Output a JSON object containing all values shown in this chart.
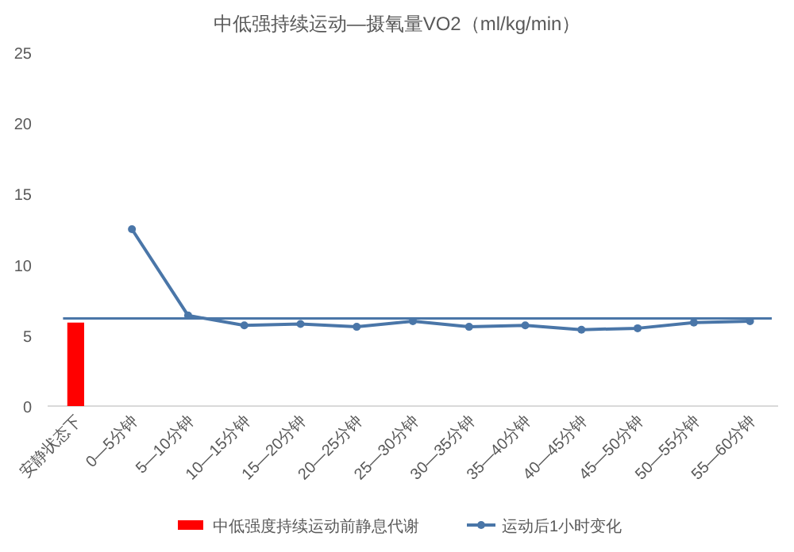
{
  "chart_data": {
    "type": "line",
    "title": "中低强持续运动—摄氧量VO2（ml/kg/min）",
    "categories": [
      "安静状态下",
      "0—5分钟",
      "5—10分钟",
      "10—15分钟",
      "15—20分钟",
      "20—25分钟",
      "25—30分钟",
      "30—35分钟",
      "35—40分钟",
      "40—45分钟",
      "45—50分钟",
      "50—55分钟",
      "55—60分钟"
    ],
    "series": [
      {
        "name": "中低强度持续运动前静息代谢",
        "type": "bar",
        "color": "#ff0000",
        "values": [
          5.9,
          null,
          null,
          null,
          null,
          null,
          null,
          null,
          null,
          null,
          null,
          null,
          null
        ]
      },
      {
        "name": "运动后1小时变化",
        "color": "#4a76a8",
        "marker": "circle",
        "values": [
          null,
          12.5,
          6.4,
          5.7,
          5.8,
          5.6,
          6.0,
          5.6,
          5.7,
          5.4,
          5.5,
          5.9,
          6.0
        ]
      }
    ],
    "ref_lines": [
      {
        "axis": "y",
        "value": 6.2,
        "color": "#4a76a8"
      }
    ],
    "ylim": [
      0,
      25
    ],
    "yticks": [
      0,
      5,
      10,
      15,
      20,
      25
    ],
    "grid": false,
    "legend": "bottom"
  }
}
